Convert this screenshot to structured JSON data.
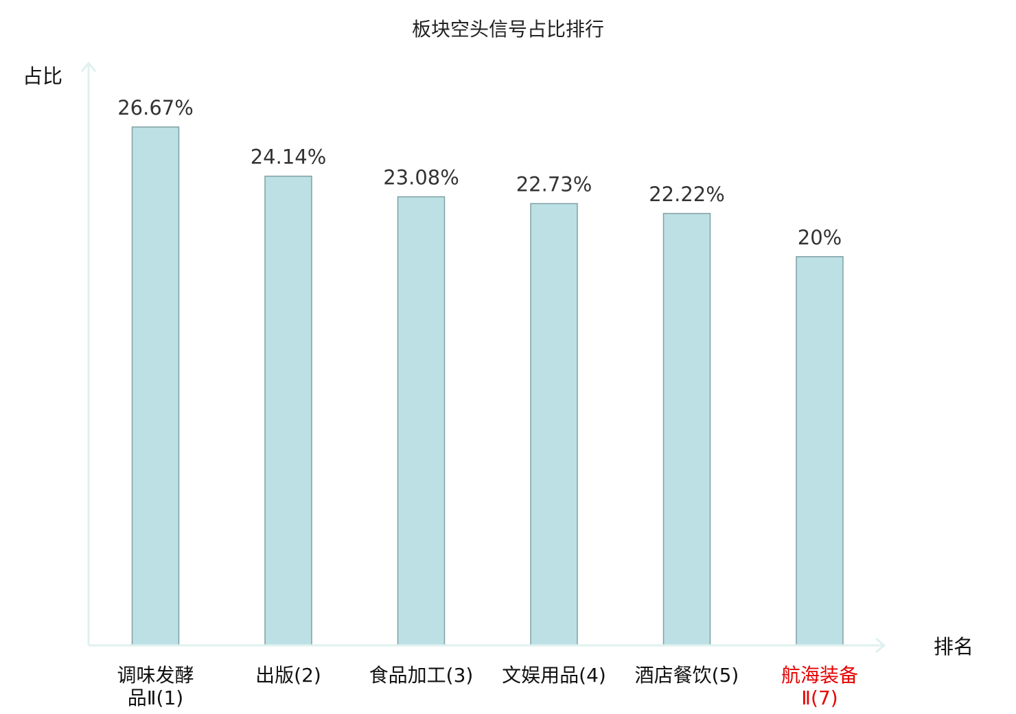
{
  "chart_data": {
    "type": "bar",
    "title": "板块空头信号占比排行",
    "xlabel": "排名",
    "ylabel": "占比",
    "categories": [
      {
        "name": "调味发酵品Ⅱ",
        "rank": "(1)",
        "lines": [
          "调味发酵",
          "品Ⅱ(1)"
        ],
        "highlight": false
      },
      {
        "name": "出版",
        "rank": "(2)",
        "lines": [
          "出版(2)"
        ],
        "highlight": false
      },
      {
        "name": "食品加工",
        "rank": "(3)",
        "lines": [
          "食品加工(3)"
        ],
        "highlight": false
      },
      {
        "name": "文娱用品",
        "rank": "(4)",
        "lines": [
          "文娱用品(4)"
        ],
        "highlight": false
      },
      {
        "name": "酒店餐饮",
        "rank": "(5)",
        "lines": [
          "酒店餐饮(5)"
        ],
        "highlight": false
      },
      {
        "name": "航海装备Ⅱ",
        "rank": "(7)",
        "lines": [
          "航海装备",
          "Ⅱ(7)"
        ],
        "highlight": true
      }
    ],
    "values": [
      26.67,
      24.14,
      23.08,
      22.73,
      22.22,
      20
    ],
    "value_labels": [
      "26.67%",
      "24.14%",
      "23.08%",
      "22.73%",
      "22.22%",
      "20%"
    ],
    "unit": "%",
    "ylim": [
      0,
      30
    ],
    "grid": false,
    "colors": {
      "bar_fill": "#bce0e3",
      "bar_stroke": "#7fa0a3",
      "axis": "#dff1ef",
      "highlight_text": "#e60000",
      "normal_text": "#111111",
      "rank_text": "#333333"
    }
  }
}
